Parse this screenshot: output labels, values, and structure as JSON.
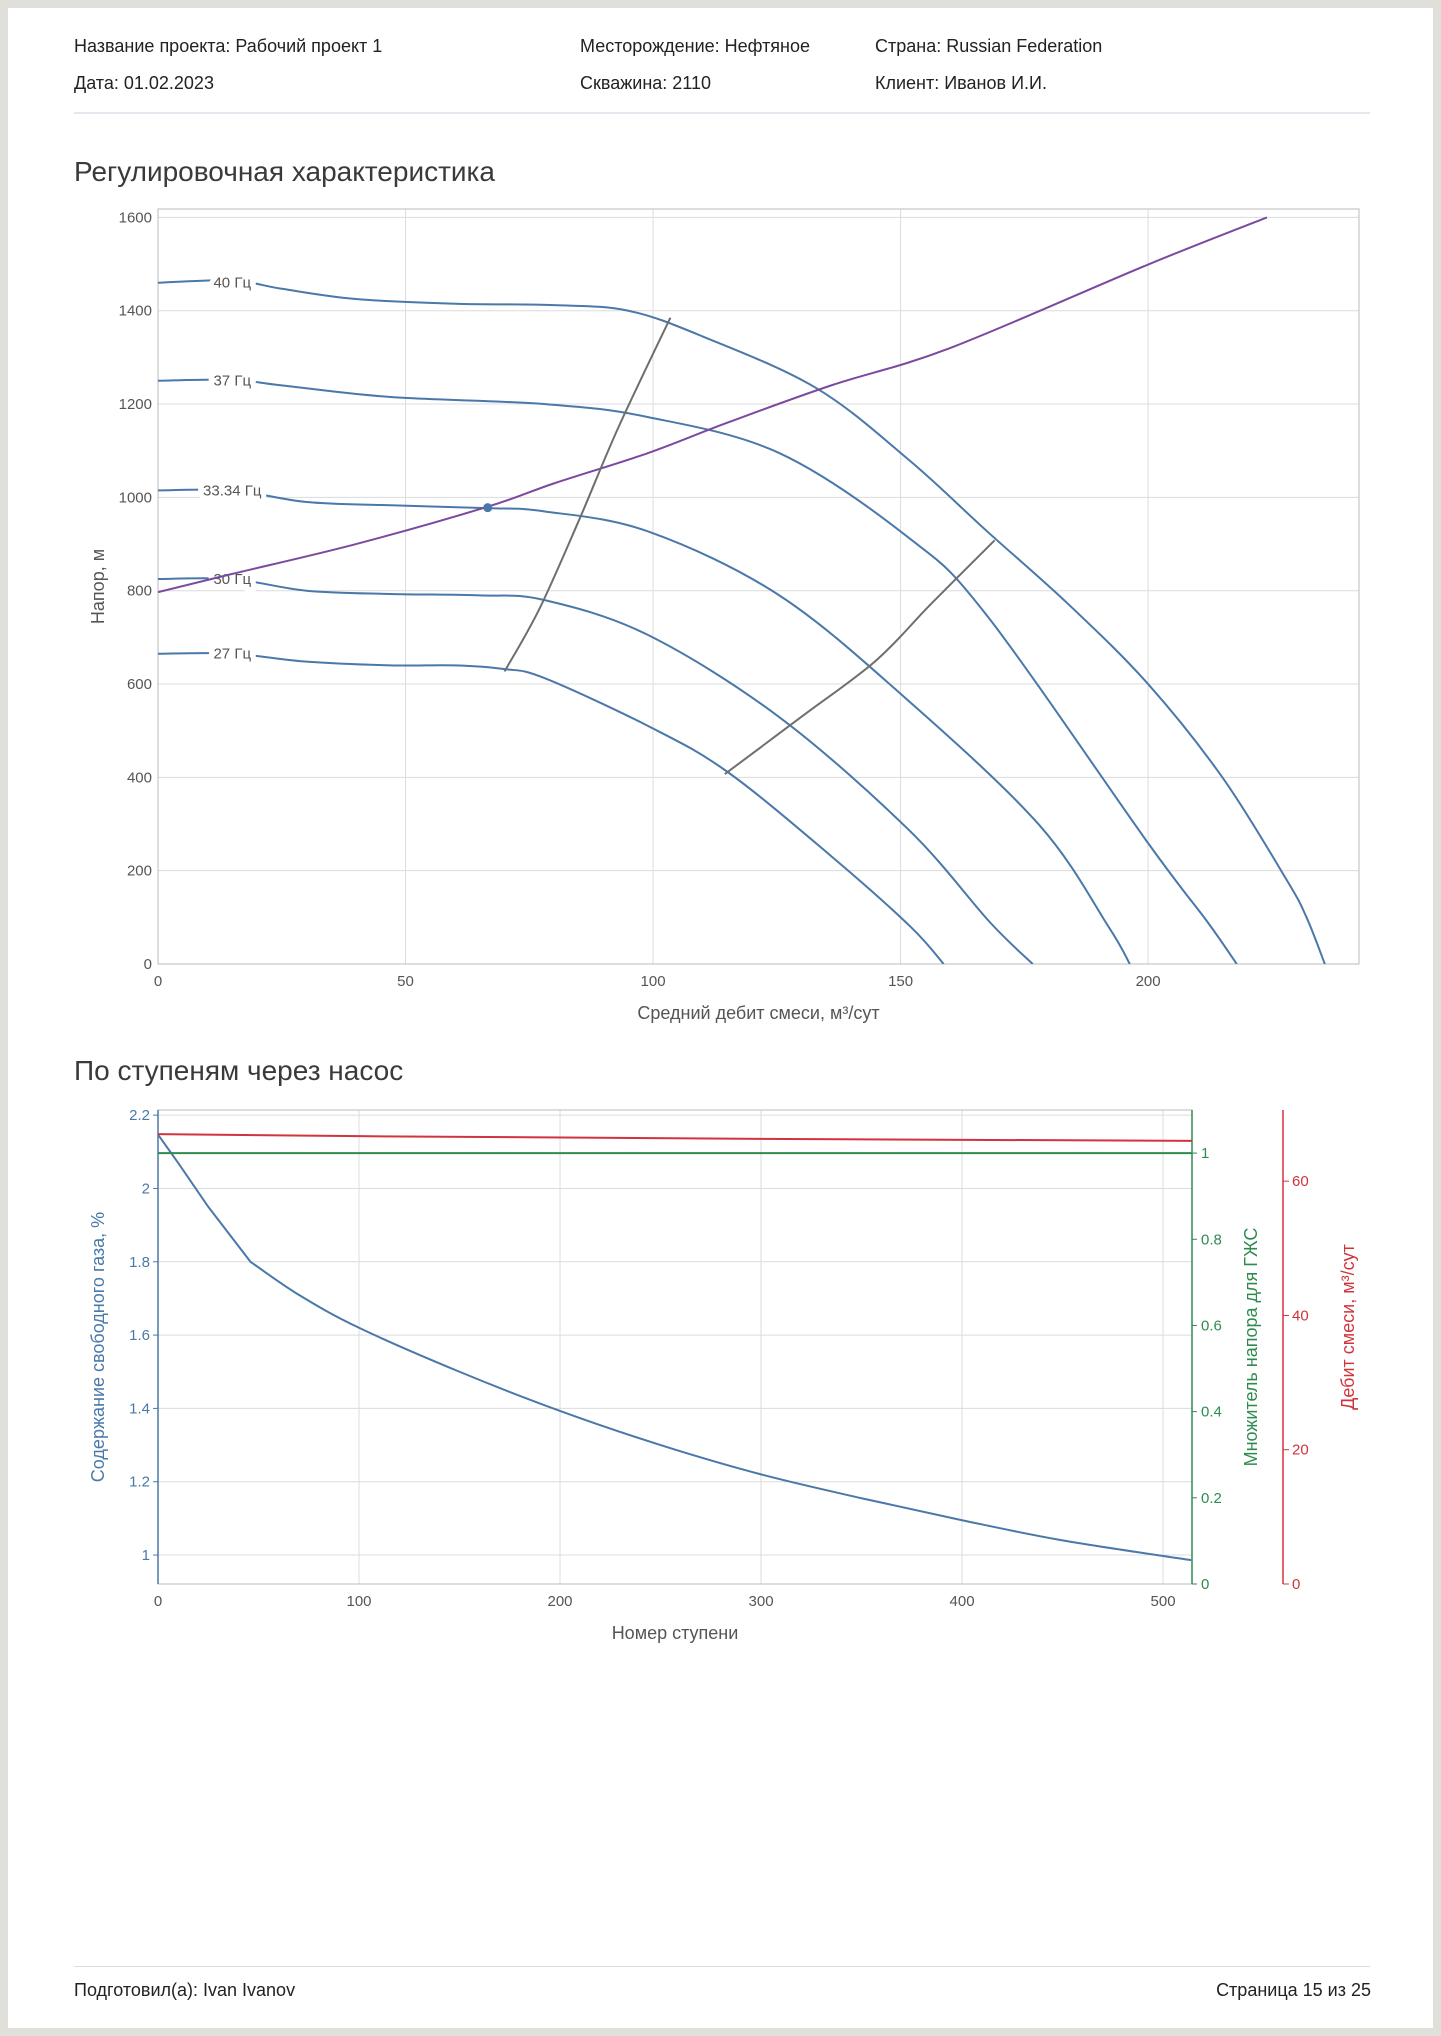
{
  "header": {
    "project": "Название проекта: Рабочий проект 1",
    "date": "Дата: 01.02.2023",
    "field": "Месторождение: Нефтяное",
    "well": "Скважина: 2110",
    "country": "Страна: Russian Federation",
    "client": "Клиент: Иванов И.И."
  },
  "sections": {
    "chart1_title": "Регулировочная характеристика",
    "chart2_title": "По ступеням через насос"
  },
  "footer": {
    "prepared": "Подготовил(а): Ivan Ivanov",
    "page": "Страница 15 из 25"
  },
  "chart_data": [
    {
      "type": "line",
      "xlabel": "Средний дебит смеси, м³/сут",
      "ylabel": "Напор, м",
      "xlim": [
        0,
        242.6
      ],
      "ylim": [
        0,
        1618
      ],
      "xticks": [
        0,
        50,
        100,
        150,
        200
      ],
      "yticks": [
        0,
        200,
        400,
        600,
        800,
        1000,
        1200,
        1400,
        1600
      ],
      "grid": true,
      "colors": {
        "hz": "#4a78a8",
        "system": "#7b4aa0",
        "bounds": "#6e6e6e"
      },
      "series": [
        {
          "name": "40 Гц",
          "points": [
            [
              0,
              1460
            ],
            [
              15,
              1465
            ],
            [
              25,
              1447
            ],
            [
              40,
              1425
            ],
            [
              60,
              1415
            ],
            [
              80,
              1412
            ],
            [
              95,
              1400
            ],
            [
              110,
              1345
            ],
            [
              133,
              1234
            ],
            [
              151.7,
              1080
            ],
            [
              167.5,
              927
            ],
            [
              184,
              770
            ],
            [
              200,
              600
            ],
            [
              215,
              400
            ],
            [
              228,
              180
            ],
            [
              232,
              100
            ],
            [
              235.7,
              0
            ]
          ]
        },
        {
          "name": "37 Гц",
          "points": [
            [
              0,
              1250
            ],
            [
              15,
              1252
            ],
            [
              25,
              1240
            ],
            [
              47,
              1215
            ],
            [
              78,
              1200
            ],
            [
              99,
              1172
            ],
            [
              125.5,
              1095
            ],
            [
              151.7,
              913
            ],
            [
              167.5,
              746
            ],
            [
              200,
              259
            ],
            [
              212,
              90
            ],
            [
              217.9,
              0
            ]
          ]
        },
        {
          "name": "33.34 Гц",
          "points": [
            [
              0,
              1015
            ],
            [
              15,
              1015
            ],
            [
              30,
              990
            ],
            [
              47,
              983
            ],
            [
              66.4,
              977
            ],
            [
              78,
              970
            ],
            [
              99,
              927
            ],
            [
              125.5,
              790
            ],
            [
              151.7,
              563
            ],
            [
              178,
              298
            ],
            [
              192,
              80
            ],
            [
              196.3,
              0
            ]
          ]
        },
        {
          "name": "30 Гц",
          "points": [
            [
              0,
              825
            ],
            [
              15,
              825
            ],
            [
              30,
              800
            ],
            [
              47,
              793
            ],
            [
              65,
              790
            ],
            [
              78,
              780
            ],
            [
              99,
              705
            ],
            [
              125.5,
              529
            ],
            [
              151.7,
              287
            ],
            [
              168,
              90
            ],
            [
              176.7,
              0
            ]
          ]
        },
        {
          "name": "27 Гц",
          "points": [
            [
              0,
              665
            ],
            [
              15,
              665
            ],
            [
              30,
              648
            ],
            [
              47,
              640
            ],
            [
              60,
              640
            ],
            [
              70,
              632
            ],
            [
              78,
              613
            ],
            [
              99,
              510
            ],
            [
              115,
              412
            ],
            [
              136,
              231
            ],
            [
              152,
              80
            ],
            [
              158.7,
              0
            ]
          ]
        },
        {
          "points": [
            [
              0,
              797
            ],
            [
              15,
              836
            ],
            [
              40,
              900
            ],
            [
              66.6,
              980
            ],
            [
              80,
              1030
            ],
            [
              99,
              1095
            ],
            [
              115,
              1160
            ],
            [
              136,
              1240
            ],
            [
              160,
              1320
            ],
            [
              200,
              1499
            ],
            [
              224,
              1600
            ]
          ]
        },
        {
          "points": [
            [
              70,
              627
            ],
            [
              77,
              760
            ],
            [
              85,
              950
            ],
            [
              93,
              1150
            ],
            [
              103.5,
              1385
            ]
          ]
        },
        {
          "points": [
            [
              114.5,
              407
            ],
            [
              130,
              530
            ],
            [
              145,
              650
            ],
            [
              156,
              770
            ],
            [
              169,
              908
            ]
          ]
        }
      ],
      "operating_point": [
        66.6,
        978
      ]
    },
    {
      "type": "line",
      "xlabel": "Номер ступени",
      "ylabel_left": "Содержание свободного газа, %",
      "ylabel_right1": "Множитель напора для ГЖС",
      "ylabel_right2": "Дебит смеси, м³/сут",
      "xlim": [
        0,
        514.4
      ],
      "ylim_left": [
        0.921,
        2.214
      ],
      "ylim_right1": [
        0,
        1.1
      ],
      "ylim_right2": [
        0,
        70.6
      ],
      "xticks": [
        0,
        100,
        200,
        300,
        400,
        500
      ],
      "yticks_left": [
        "1",
        "1.2",
        "1.4",
        "1.6",
        "1.8",
        "2",
        "2.2"
      ],
      "yticks_right1": [
        "0",
        "0.2",
        "0.4",
        "0.6",
        "0.8",
        "1"
      ],
      "yticks_right2": [
        "0",
        "20",
        "40",
        "60"
      ],
      "grid": true,
      "colors": {
        "left": "#4a78a8",
        "right1": "#2e8b4e",
        "right2": "#d0343c"
      },
      "series": [
        {
          "axis": "left",
          "points": [
            [
              0,
              2.147
            ],
            [
              10,
              2.07
            ],
            [
              25,
              1.95
            ],
            [
              46,
              1.8
            ],
            [
              70,
              1.71
            ],
            [
              100,
              1.62
            ],
            [
              150,
              1.5
            ],
            [
              200,
              1.393
            ],
            [
              250,
              1.3
            ],
            [
              300,
              1.22
            ],
            [
              350,
              1.155
            ],
            [
              400,
              1.095
            ],
            [
              450,
              1.04
            ],
            [
              514,
              0.986
            ]
          ]
        },
        {
          "axis": "right1",
          "points": [
            [
              0,
              1
            ],
            [
              514.4,
              1
            ]
          ]
        },
        {
          "axis": "right2",
          "points": [
            [
              0,
              67
            ],
            [
              100,
              66.7
            ],
            [
              300,
              66.3
            ],
            [
              514.4,
              66
            ]
          ]
        }
      ]
    }
  ]
}
